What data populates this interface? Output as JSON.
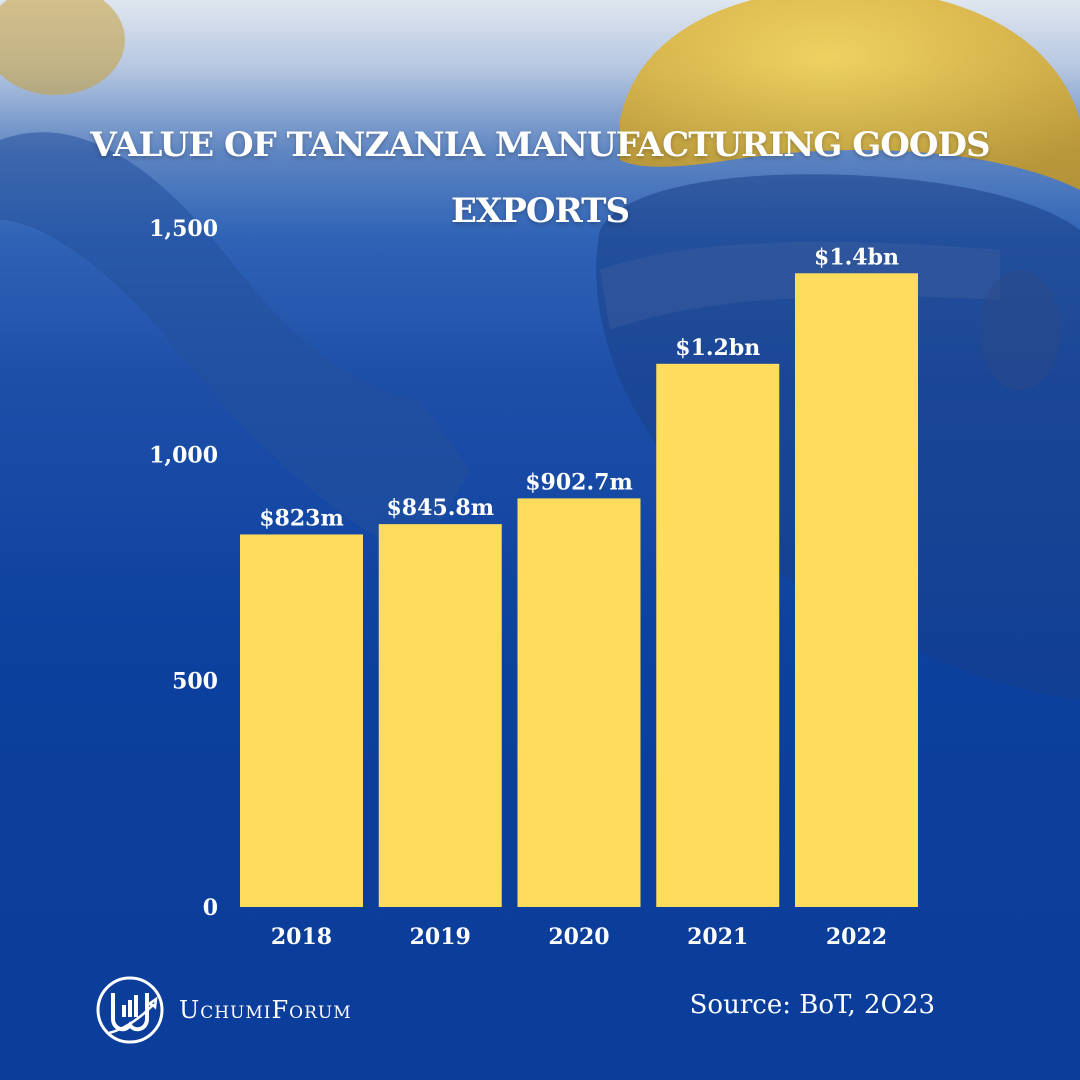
{
  "title": "VALUE OF TANZANIA MANUFACTURING GOODS EXPORTS",
  "source": "Source: BoT, 2O23",
  "brand": {
    "name": "UchumiForum",
    "logo_icon": "uchumiforum-logo-icon"
  },
  "colors": {
    "bar": "#fedc5e",
    "background": "#0b3d9a",
    "text": "#ffffff"
  },
  "chart_data": {
    "type": "bar",
    "categories": [
      "2018",
      "2019",
      "2020",
      "2021",
      "2022"
    ],
    "values": [
      823,
      845.8,
      902.7,
      1200,
      1400
    ],
    "data_labels": [
      "$823m",
      "$845.8m",
      "$902.7m",
      "$1.2bn",
      "$1.4bn"
    ],
    "y_ticks": [
      0,
      500,
      1000,
      1500
    ],
    "y_tick_labels": [
      "0",
      "500",
      "1,000",
      "1,500"
    ],
    "ylim": [
      0,
      1500
    ],
    "xlabel": "",
    "ylabel": "",
    "grid": false,
    "legend": "none"
  }
}
